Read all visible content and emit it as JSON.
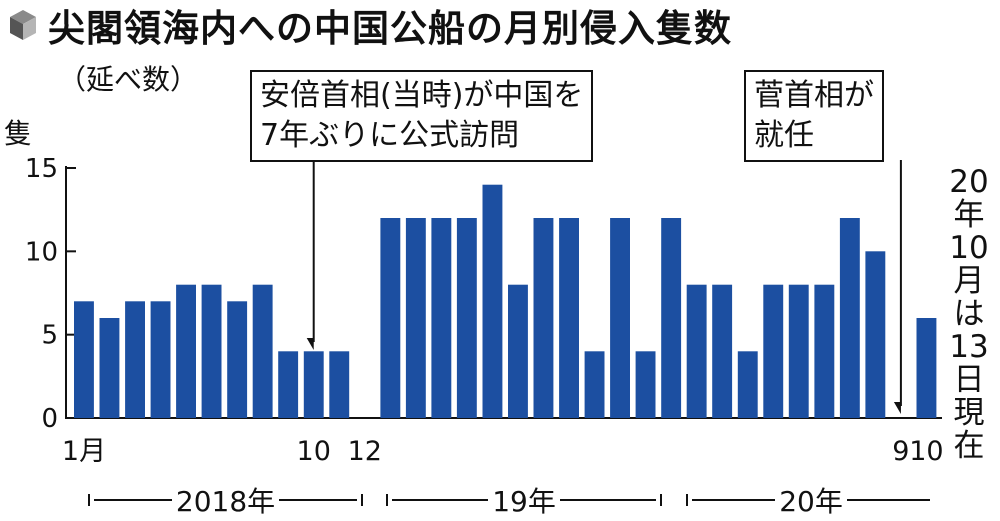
{
  "title": "尖閣領海内への中国公船の月別侵入隻数",
  "subtitle": "（延べ数）",
  "y_unit": "隻",
  "colors": {
    "bar": "#1c4fa1",
    "axis": "#111111"
  },
  "annotations": [
    {
      "text_line1": "安倍首相(当時)が中国を",
      "text_line2": "7年ぶりに公式訪問"
    },
    {
      "text_line1": "菅首相が",
      "text_line2": "就任"
    }
  ],
  "current_note": [
    "20",
    "年",
    "10",
    "月",
    "は",
    "13",
    "日",
    "現",
    "在"
  ],
  "periods": [
    "2018年",
    "19年",
    "20年"
  ],
  "chart_data": {
    "type": "bar",
    "categories": [
      "2018-01",
      "2018-02",
      "2018-03",
      "2018-04",
      "2018-05",
      "2018-06",
      "2018-07",
      "2018-08",
      "2018-09",
      "2018-10",
      "2018-11",
      "2018-12",
      "2019-01",
      "2019-02",
      "2019-03",
      "2019-04",
      "2019-05",
      "2019-06",
      "2019-07",
      "2019-08",
      "2019-09",
      "2019-10",
      "2019-11",
      "2019-12",
      "2020-01",
      "2020-02",
      "2020-03",
      "2020-04",
      "2020-05",
      "2020-06",
      "2020-07",
      "2020-08",
      "2020-09",
      "2020-10"
    ],
    "values": [
      7,
      6,
      7,
      7,
      8,
      8,
      7,
      8,
      4,
      4,
      4,
      0,
      12,
      12,
      12,
      12,
      14,
      8,
      12,
      12,
      4,
      12,
      4,
      12,
      8,
      8,
      4,
      8,
      8,
      8,
      12,
      10,
      0,
      6
    ],
    "x_tick_labels": [
      {
        "index": 0,
        "label": "1月"
      },
      {
        "index": 9,
        "label": "10"
      },
      {
        "index": 11,
        "label": "12"
      },
      {
        "index": 32,
        "label": "9"
      },
      {
        "index": 33,
        "label": "10"
      }
    ],
    "yticks": [
      0,
      5,
      10,
      15
    ],
    "ylim": [
      0,
      15
    ],
    "ylabel": "隻"
  }
}
